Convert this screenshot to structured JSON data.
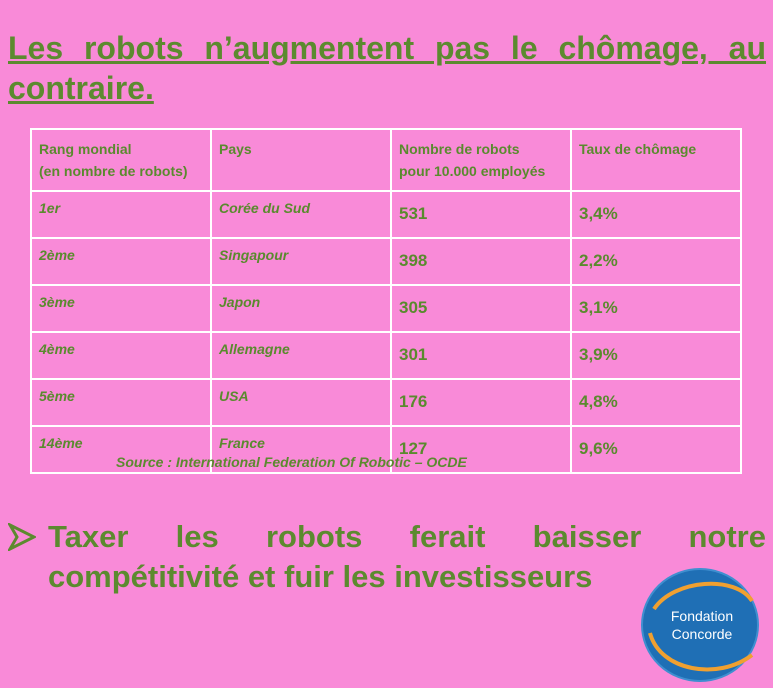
{
  "title": "Les robots n’augmentent pas le chômage, au contraire.",
  "table": {
    "headers": {
      "rank_line1": "Rang mondial",
      "rank_line2": "(en nombre de robots)",
      "country": "Pays",
      "robots_line1": "Nombre de robots",
      "robots_line2": "pour 10.000 employés",
      "unemployment": "Taux de chômage"
    },
    "rows": [
      {
        "rank": "1er",
        "country": "Corée du Sud",
        "robots": "531",
        "unemployment": "3,4%"
      },
      {
        "rank": "2ème",
        "country": "Singapour",
        "robots": "398",
        "unemployment": "2,2%"
      },
      {
        "rank": "3ème",
        "country": "Japon",
        "robots": "305",
        "unemployment": "3,1%"
      },
      {
        "rank": "4ème",
        "country": "Allemagne",
        "robots": "301",
        "unemployment": "3,9%"
      },
      {
        "rank": "5ème",
        "country": "USA",
        "robots": "176",
        "unemployment": "4,8%"
      },
      {
        "rank": "14ème",
        "country": "France",
        "robots": "127",
        "unemployment": "9,6%"
      }
    ]
  },
  "source": "Source : International Federation Of Robotic – OCDE",
  "bullet": "Taxer les robots ferait baisser notre compétitivité et fuir les investisseurs",
  "logo": {
    "line1": "Fondation",
    "line2": "Concorde"
  },
  "colors": {
    "background": "#f98ad8",
    "text": "#5c8a2f",
    "logo_blue": "#1f6fb5",
    "logo_orange": "#f0a030"
  }
}
